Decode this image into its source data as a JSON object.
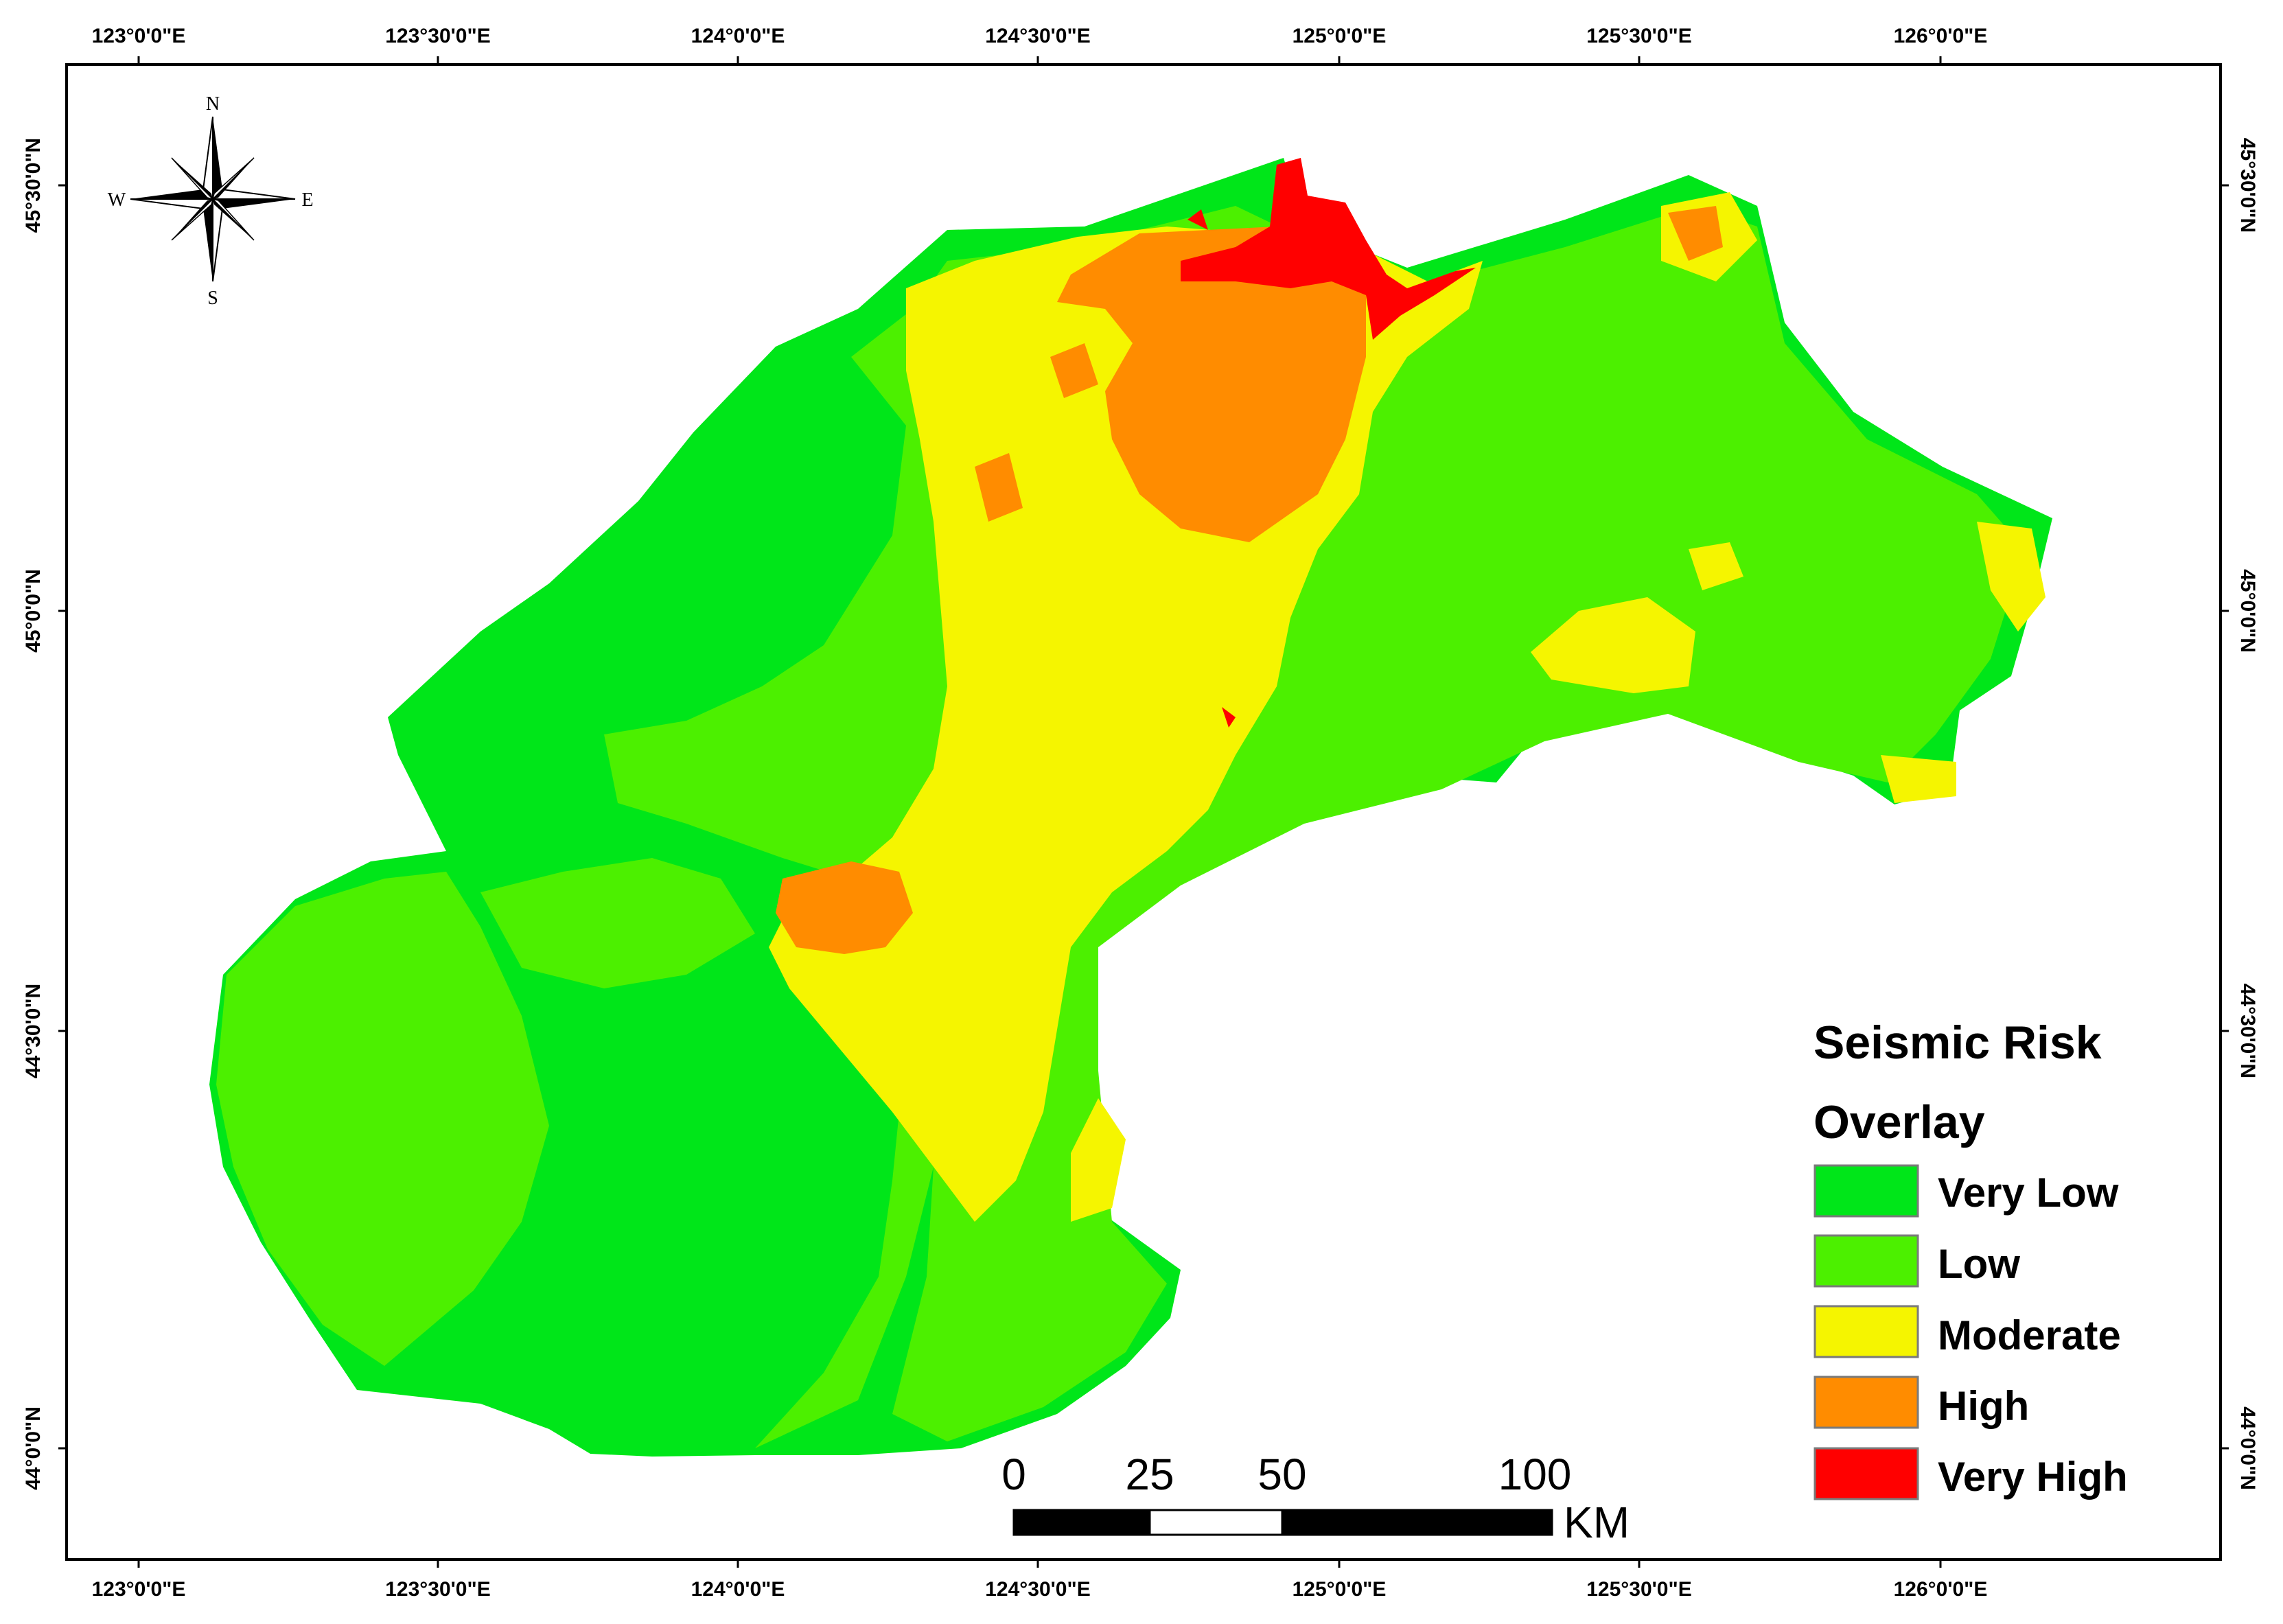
{
  "axes": {
    "top_lon_labels": [
      "123°0'0\"E",
      "123°30'0\"E",
      "124°0'0\"E",
      "124°30'0\"E",
      "125°0'0\"E",
      "125°30'0\"E",
      "126°0'0\"E"
    ],
    "bottom_lon_labels": [
      "123°0'0\"E",
      "123°30'0\"E",
      "124°0'0\"E",
      "124°30'0\"E",
      "125°0'0\"E",
      "125°30'0\"E",
      "126°0'0\"E"
    ],
    "left_lat_labels": [
      "45°30'0\"N",
      "45°0'0\"N",
      "44°30'0\"N",
      "44°0'0\"N"
    ],
    "right_lat_labels": [
      "45°30'0\"N",
      "45°0'0\"N",
      "44°30'0\"N",
      "44°0'0\"N"
    ]
  },
  "compass": {
    "n": "N",
    "s": "S",
    "e": "E",
    "w": "W"
  },
  "legend": {
    "title_line1": "Seismic Risk",
    "title_line2": "Overlay",
    "items": [
      {
        "label": "Very Low",
        "color": "#00e619"
      },
      {
        "label": "Low",
        "color": "#4cf000"
      },
      {
        "label": "Moderate",
        "color": "#f5f500"
      },
      {
        "label": "High",
        "color": "#ff8c00"
      },
      {
        "label": "Very High",
        "color": "#ff0000"
      }
    ]
  },
  "scale_bar": {
    "ticks": [
      "0",
      "25",
      "50",
      "100"
    ],
    "unit": "KM"
  }
}
